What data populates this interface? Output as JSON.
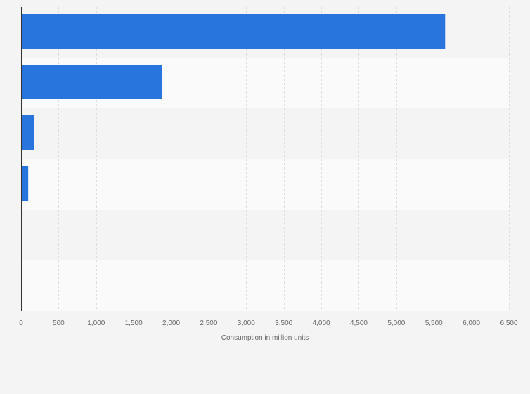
{
  "chart_data": {
    "type": "bar",
    "orientation": "horizontal",
    "categories": [
      "",
      "",
      "",
      "",
      "",
      ""
    ],
    "values": [
      5650,
      1880,
      170,
      95,
      10,
      0
    ],
    "xlabel": "Consumption in million units",
    "ylabel": "",
    "xlim": [
      0,
      6500
    ],
    "xticks": [
      0,
      500,
      1000,
      1500,
      2000,
      2500,
      3000,
      3500,
      4000,
      4500,
      5000,
      5500,
      6000,
      6500
    ],
    "xtick_labels": [
      "0",
      "500",
      "1,000",
      "1,500",
      "2,000",
      "2,500",
      "3,000",
      "3,500",
      "4,000",
      "4,500",
      "5,000",
      "5,500",
      "6,000",
      "6,500"
    ],
    "grid": true,
    "legend": "none"
  },
  "colors": {
    "bar": "#2876dd",
    "background": "#f4f4f4",
    "band_light": "#fafafa",
    "band_dark": "#f4f4f4",
    "grid": "#dddddd",
    "axis": "#333333",
    "text": "#666666"
  }
}
